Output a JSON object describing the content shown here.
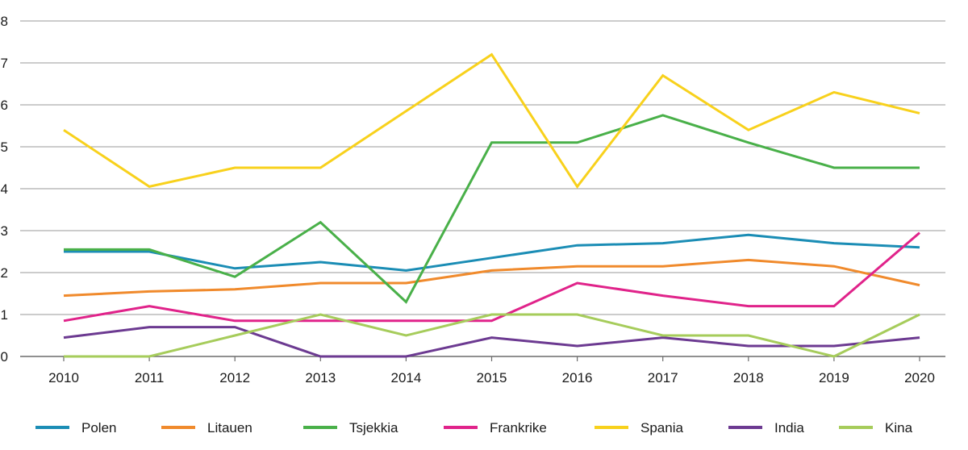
{
  "chart_data": {
    "type": "line",
    "title": "",
    "xlabel": "",
    "ylabel": "",
    "ylim": [
      0,
      8
    ],
    "yticks": [
      0,
      1,
      2,
      3,
      4,
      5,
      6,
      7,
      8
    ],
    "grid": true,
    "legend_position": "bottom",
    "categories": [
      "2010",
      "2011",
      "2012",
      "2013",
      "2014",
      "2015",
      "2016",
      "2017",
      "2018",
      "2019",
      "2020"
    ],
    "series": [
      {
        "name": "Polen",
        "color": "#1b8db5",
        "values": [
          2.5,
          2.5,
          2.1,
          2.25,
          2.05,
          2.35,
          2.65,
          2.7,
          2.9,
          2.7,
          2.6
        ]
      },
      {
        "name": "Litauen",
        "color": "#f08a2c",
        "values": [
          1.45,
          1.55,
          1.6,
          1.75,
          1.75,
          2.05,
          2.15,
          2.15,
          2.3,
          2.15,
          1.7
        ]
      },
      {
        "name": "Tsjekkia",
        "color": "#49b049",
        "values": [
          2.55,
          2.55,
          1.9,
          3.2,
          1.3,
          5.1,
          5.1,
          5.75,
          5.1,
          4.5,
          4.5
        ]
      },
      {
        "name": "Frankrike",
        "color": "#e0238a",
        "values": [
          0.85,
          1.2,
          0.85,
          0.85,
          0.85,
          0.85,
          1.75,
          1.45,
          1.2,
          1.2,
          2.95
        ]
      },
      {
        "name": "Spania",
        "color": "#f8d11c",
        "values": [
          5.4,
          4.05,
          4.5,
          4.5,
          5.85,
          7.2,
          4.05,
          6.7,
          5.4,
          6.3,
          5.8
        ]
      },
      {
        "name": "India",
        "color": "#6c3a91",
        "values": [
          0.45,
          0.7,
          0.7,
          0.0,
          0.0,
          0.45,
          0.25,
          0.45,
          0.25,
          0.25,
          0.45
        ]
      },
      {
        "name": "Kina",
        "color": "#a6cc5b",
        "values": [
          0.0,
          0.0,
          0.5,
          1.0,
          0.5,
          1.0,
          1.0,
          0.5,
          0.5,
          0.0,
          1.0
        ]
      }
    ]
  }
}
